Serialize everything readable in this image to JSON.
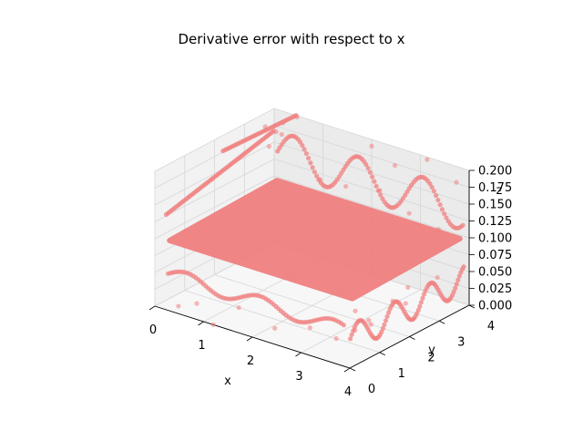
{
  "chart_data": {
    "type": "scatter",
    "projection": "3d",
    "title": "Derivative error with respect to x",
    "xlabel": "x",
    "ylabel": "y",
    "zlabel": "z",
    "xlim": [
      0,
      4
    ],
    "ylim": [
      0,
      4
    ],
    "zlim": [
      0,
      0.2
    ],
    "x_ticks": [
      "0",
      "1",
      "2",
      "3",
      "4"
    ],
    "y_ticks": [
      "0",
      "1",
      "2",
      "3",
      "4"
    ],
    "z_ticks": [
      "0.000",
      "0.025",
      "0.050",
      "0.075",
      "0.100",
      "0.125",
      "0.150",
      "0.175",
      "0.200"
    ],
    "grid": true,
    "marker_color": "#f08080",
    "series": [
      {
        "points": [
          [
            0.0,
            3.7,
            0.18
          ],
          [
            0.1,
            3.9,
            0.17
          ],
          [
            0.3,
            3.8,
            0.19
          ],
          [
            0.5,
            3.95,
            0.2
          ],
          [
            0.2,
            3.5,
            0.16
          ],
          [
            0.4,
            3.6,
            0.18
          ],
          [
            3.6,
            0.2,
            0.03
          ],
          [
            3.8,
            0.5,
            0.04
          ],
          [
            3.9,
            0.8,
            0.05
          ],
          [
            3.7,
            1.2,
            0.03
          ],
          [
            3.5,
            1.0,
            0.05
          ],
          [
            3.9,
            1.6,
            0.06
          ],
          [
            3.8,
            2.2,
            0.04
          ],
          [
            3.6,
            2.6,
            0.05
          ],
          [
            3.9,
            3.1,
            0.06
          ],
          [
            0.8,
            0.1,
            0.02
          ],
          [
            1.6,
            0.2,
            0.03
          ],
          [
            2.4,
            0.1,
            0.02
          ],
          [
            3.0,
            0.3,
            0.03
          ],
          [
            0.3,
            0.3,
            0.0
          ],
          [
            1.2,
            0.0,
            0.0
          ],
          [
            2.0,
            4.0,
            0.19
          ],
          [
            2.6,
            3.8,
            0.18
          ],
          [
            3.2,
            3.9,
            0.2
          ],
          [
            3.8,
            3.9,
            0.18
          ],
          [
            1.0,
            3.9,
            0.12
          ],
          [
            1.5,
            3.95,
            0.12
          ],
          [
            2.2,
            3.95,
            0.13
          ],
          [
            2.8,
            3.95,
            0.11
          ],
          [
            3.4,
            3.95,
            0.1
          ]
        ]
      }
    ]
  }
}
